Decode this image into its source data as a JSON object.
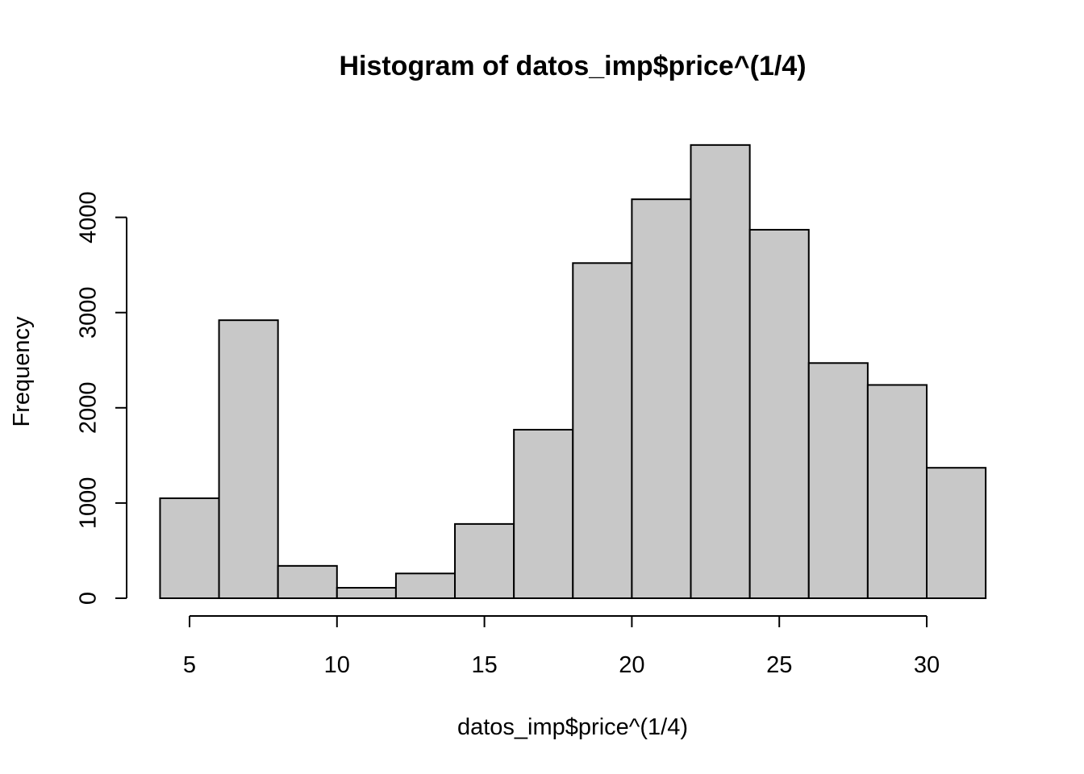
{
  "chart_data": {
    "type": "bar",
    "subtype": "histogram",
    "title": "Histogram of datos_imp$price^(1/4)",
    "xlabel": "datos_imp$price^(1/4)",
    "ylabel": "Frequency",
    "bins": [
      {
        "from": 4,
        "to": 6,
        "value": 1050
      },
      {
        "from": 6,
        "to": 8,
        "value": 2920
      },
      {
        "from": 8,
        "to": 10,
        "value": 340
      },
      {
        "from": 10,
        "to": 12,
        "value": 110
      },
      {
        "from": 12,
        "to": 14,
        "value": 260
      },
      {
        "from": 14,
        "to": 16,
        "value": 780
      },
      {
        "from": 16,
        "to": 18,
        "value": 1770
      },
      {
        "from": 18,
        "to": 20,
        "value": 3520
      },
      {
        "from": 20,
        "to": 22,
        "value": 4190
      },
      {
        "from": 22,
        "to": 24,
        "value": 4760
      },
      {
        "from": 24,
        "to": 26,
        "value": 3870
      },
      {
        "from": 26,
        "to": 28,
        "value": 2470
      },
      {
        "from": 28,
        "to": 30,
        "value": 2240
      },
      {
        "from": 30,
        "to": 32,
        "value": 1370
      }
    ],
    "xlim": [
      4,
      32
    ],
    "ylim": [
      0,
      4760
    ],
    "x_ticks": [
      5,
      10,
      15,
      20,
      25,
      30
    ],
    "y_ticks": [
      0,
      1000,
      2000,
      3000,
      4000
    ],
    "x_tick_labels": [
      "5",
      "10",
      "15",
      "20",
      "25",
      "30"
    ],
    "y_tick_labels": [
      "0",
      "1000",
      "2000",
      "3000",
      "4000"
    ],
    "bar_fill": "#c8c8c8",
    "bar_stroke": "#000000",
    "grid": false,
    "legend": "none"
  }
}
